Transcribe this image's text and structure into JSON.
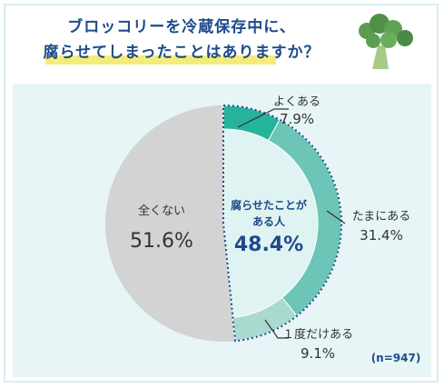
{
  "title": {
    "line1": "ブロッコリーを冷蔵保存中に、",
    "line2": "腐らせてしまったことはありますか？"
  },
  "colors": {
    "no": "#d3d3d3",
    "yes_bg": "#dff3f2",
    "often": "#26b39c",
    "sometimes": "#6cc5b7",
    "once": "#a9d9cf",
    "accent_blue": "#1d4a8a",
    "dotted": "#1d4a8a"
  },
  "chart_data": {
    "type": "pie",
    "slices": [
      {
        "label": "全くない",
        "value": 51.6,
        "display": "51.6%"
      },
      {
        "label": "腐らせたことがある人",
        "value": 48.4,
        "display": "48.4%"
      }
    ],
    "breakdown": [
      {
        "label": "よくある",
        "value": 7.9,
        "display": "7.9%"
      },
      {
        "label": "たまにある",
        "value": 31.4,
        "display": "31.4%"
      },
      {
        "label": "１度だけある",
        "value": 9.1,
        "display": "9.1%"
      }
    ],
    "yes_label_line1": "腐らせたことが",
    "yes_label_line2": "ある人",
    "sample_note": "(n=947)"
  }
}
